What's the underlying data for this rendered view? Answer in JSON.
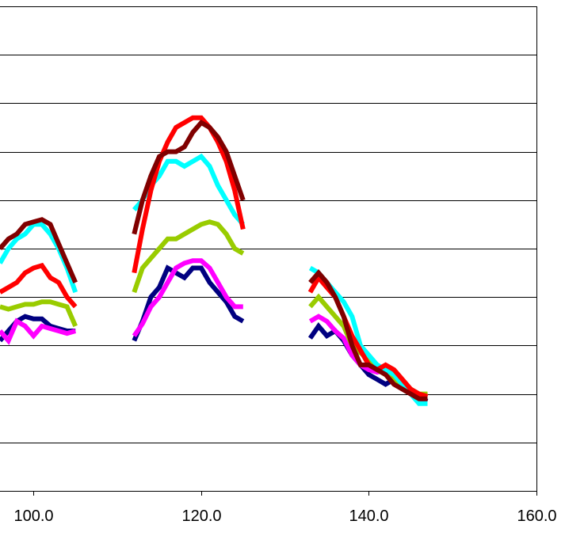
{
  "chart_data": {
    "type": "line",
    "title": "",
    "xlabel": "",
    "ylabel": "",
    "xlim": [
      96,
      160
    ],
    "ylim": [
      0,
      10
    ],
    "x_ticks": [
      {
        "value": 100,
        "label": "100.0"
      },
      {
        "value": 120,
        "label": "120.0"
      },
      {
        "value": 140,
        "label": "140.0"
      },
      {
        "value": 160,
        "label": "160.0"
      }
    ],
    "y_gridlines": [
      1,
      2,
      3,
      4,
      5,
      6,
      7,
      8,
      9,
      10
    ],
    "grid": true,
    "legend": "none",
    "series": [
      {
        "color": "#000080",
        "segments": [
          [
            [
              96,
              3.1
            ],
            [
              97,
              3.3
            ],
            [
              98,
              3.5
            ],
            [
              99,
              3.6
            ],
            [
              100,
              3.55
            ],
            [
              101,
              3.55
            ],
            [
              102,
              3.4
            ],
            [
              103,
              3.35
            ],
            [
              104,
              3.3
            ],
            [
              105,
              3.3
            ]
          ],
          [
            [
              112,
              3.1
            ],
            [
              113,
              3.5
            ],
            [
              114,
              4.0
            ],
            [
              115,
              4.2
            ],
            [
              116,
              4.6
            ],
            [
              117,
              4.5
            ],
            [
              118,
              4.4
            ],
            [
              119,
              4.6
            ],
            [
              120,
              4.6
            ],
            [
              121,
              4.3
            ],
            [
              122,
              4.1
            ],
            [
              123,
              3.9
            ],
            [
              124,
              3.6
            ],
            [
              125,
              3.5
            ]
          ],
          [
            [
              133,
              3.15
            ],
            [
              134,
              3.4
            ],
            [
              135,
              3.2
            ],
            [
              136,
              3.3
            ],
            [
              137,
              3.1
            ],
            [
              138,
              2.8
            ],
            [
              139,
              2.6
            ],
            [
              140,
              2.4
            ],
            [
              141,
              2.3
            ],
            [
              142,
              2.2
            ],
            [
              143,
              2.3
            ],
            [
              144,
              2.25
            ],
            [
              145,
              2.1
            ],
            [
              146,
              1.9
            ],
            [
              147,
              1.85
            ]
          ]
        ]
      },
      {
        "color": "#FF00FF",
        "segments": [
          [
            [
              96,
              3.3
            ],
            [
              97,
              3.1
            ],
            [
              98,
              3.5
            ],
            [
              99,
              3.4
            ],
            [
              100,
              3.2
            ],
            [
              101,
              3.4
            ],
            [
              102,
              3.35
            ],
            [
              103,
              3.3
            ],
            [
              104,
              3.25
            ],
            [
              105,
              3.3
            ]
          ],
          [
            [
              112,
              3.2
            ],
            [
              113,
              3.45
            ],
            [
              114,
              3.8
            ],
            [
              115,
              4.0
            ],
            [
              116,
              4.3
            ],
            [
              117,
              4.6
            ],
            [
              118,
              4.7
            ],
            [
              119,
              4.75
            ],
            [
              120,
              4.75
            ],
            [
              121,
              4.6
            ],
            [
              122,
              4.3
            ],
            [
              123,
              4.0
            ],
            [
              124,
              3.8
            ],
            [
              125,
              3.8
            ]
          ],
          [
            [
              133,
              3.5
            ],
            [
              134,
              3.6
            ],
            [
              135,
              3.5
            ],
            [
              136,
              3.3
            ],
            [
              137,
              3.15
            ],
            [
              138,
              2.8
            ],
            [
              139,
              2.6
            ],
            [
              140,
              2.5
            ],
            [
              141,
              2.45
            ],
            [
              142,
              2.5
            ],
            [
              143,
              2.4
            ],
            [
              144,
              2.2
            ],
            [
              145,
              2.0
            ],
            [
              146,
              1.9
            ],
            [
              147,
              1.9
            ]
          ]
        ]
      },
      {
        "color": "#99CC00",
        "segments": [
          [
            [
              96,
              3.8
            ],
            [
              97,
              3.75
            ],
            [
              98,
              3.8
            ],
            [
              99,
              3.85
            ],
            [
              100,
              3.85
            ],
            [
              101,
              3.9
            ],
            [
              102,
              3.9
            ],
            [
              103,
              3.85
            ],
            [
              104,
              3.8
            ],
            [
              105,
              3.4
            ]
          ],
          [
            [
              112,
              4.1
            ],
            [
              113,
              4.6
            ],
            [
              114,
              4.8
            ],
            [
              115,
              5.0
            ],
            [
              116,
              5.2
            ],
            [
              117,
              5.2
            ],
            [
              118,
              5.3
            ],
            [
              119,
              5.4
            ],
            [
              120,
              5.5
            ],
            [
              121,
              5.55
            ],
            [
              122,
              5.5
            ],
            [
              123,
              5.3
            ],
            [
              124,
              5.0
            ],
            [
              125,
              4.9
            ]
          ],
          [
            [
              133,
              3.8
            ],
            [
              134,
              4.0
            ],
            [
              135,
              3.8
            ],
            [
              136,
              3.6
            ],
            [
              137,
              3.4
            ],
            [
              138,
              3.0
            ],
            [
              139,
              2.85
            ],
            [
              140,
              2.7
            ],
            [
              141,
              2.5
            ],
            [
              142,
              2.4
            ],
            [
              143,
              2.3
            ],
            [
              144,
              2.2
            ],
            [
              145,
              2.1
            ],
            [
              146,
              2.0
            ],
            [
              147,
              2.0
            ]
          ]
        ]
      },
      {
        "color": "#00FFFF",
        "segments": [
          [
            [
              96,
              4.7
            ],
            [
              97,
              5.0
            ],
            [
              98,
              5.2
            ],
            [
              99,
              5.3
            ],
            [
              100,
              5.5
            ],
            [
              101,
              5.5
            ],
            [
              102,
              5.3
            ],
            [
              103,
              5.0
            ],
            [
              104,
              4.6
            ],
            [
              105,
              4.1
            ]
          ],
          [
            [
              112,
              5.8
            ],
            [
              113,
              6.0
            ],
            [
              114,
              6.3
            ],
            [
              115,
              6.5
            ],
            [
              116,
              6.8
            ],
            [
              117,
              6.8
            ],
            [
              118,
              6.7
            ],
            [
              119,
              6.8
            ],
            [
              120,
              6.9
            ],
            [
              121,
              6.7
            ],
            [
              122,
              6.3
            ],
            [
              123,
              6.0
            ],
            [
              124,
              5.7
            ],
            [
              125,
              5.5
            ]
          ],
          [
            [
              133,
              4.6
            ],
            [
              134,
              4.5
            ],
            [
              135,
              4.3
            ],
            [
              136,
              4.1
            ],
            [
              137,
              3.9
            ],
            [
              138,
              3.6
            ],
            [
              139,
              3.0
            ],
            [
              140,
              2.8
            ],
            [
              141,
              2.6
            ],
            [
              142,
              2.5
            ],
            [
              143,
              2.4
            ],
            [
              144,
              2.2
            ],
            [
              145,
              2.0
            ],
            [
              146,
              1.8
            ],
            [
              147,
              1.8
            ]
          ]
        ]
      },
      {
        "color": "#FF0000",
        "segments": [
          [
            [
              96,
              4.1
            ],
            [
              97,
              4.2
            ],
            [
              98,
              4.3
            ],
            [
              99,
              4.5
            ],
            [
              100,
              4.6
            ],
            [
              101,
              4.65
            ],
            [
              102,
              4.4
            ],
            [
              103,
              4.3
            ],
            [
              104,
              4.0
            ],
            [
              105,
              3.8
            ]
          ],
          [
            [
              112,
              4.5
            ],
            [
              113,
              5.4
            ],
            [
              114,
              6.2
            ],
            [
              115,
              6.8
            ],
            [
              116,
              7.2
            ],
            [
              117,
              7.5
            ],
            [
              118,
              7.6
            ],
            [
              119,
              7.7
            ],
            [
              120,
              7.7
            ],
            [
              121,
              7.5
            ],
            [
              122,
              7.2
            ],
            [
              123,
              6.8
            ],
            [
              124,
              6.2
            ],
            [
              125,
              5.4
            ]
          ],
          [
            [
              133,
              4.1
            ],
            [
              134,
              4.4
            ],
            [
              135,
              4.2
            ],
            [
              136,
              4.0
            ],
            [
              137,
              3.6
            ],
            [
              138,
              3.2
            ],
            [
              139,
              2.9
            ],
            [
              140,
              2.6
            ],
            [
              141,
              2.5
            ],
            [
              142,
              2.6
            ],
            [
              143,
              2.5
            ],
            [
              144,
              2.3
            ],
            [
              145,
              2.1
            ],
            [
              146,
              2.0
            ],
            [
              147,
              1.95
            ]
          ]
        ]
      },
      {
        "color": "#800000",
        "segments": [
          [
            [
              96,
              5.0
            ],
            [
              97,
              5.2
            ],
            [
              98,
              5.3
            ],
            [
              99,
              5.5
            ],
            [
              100,
              5.55
            ],
            [
              101,
              5.6
            ],
            [
              102,
              5.5
            ],
            [
              103,
              5.1
            ],
            [
              104,
              4.7
            ],
            [
              105,
              4.3
            ]
          ],
          [
            [
              112,
              5.3
            ],
            [
              113,
              6.0
            ],
            [
              114,
              6.5
            ],
            [
              115,
              6.9
            ],
            [
              116,
              7.0
            ],
            [
              117,
              7.0
            ],
            [
              118,
              7.1
            ],
            [
              119,
              7.4
            ],
            [
              120,
              7.6
            ],
            [
              121,
              7.5
            ],
            [
              122,
              7.3
            ],
            [
              123,
              7.0
            ],
            [
              124,
              6.5
            ],
            [
              125,
              6.0
            ]
          ],
          [
            [
              133,
              4.3
            ],
            [
              134,
              4.5
            ],
            [
              135,
              4.3
            ],
            [
              136,
              4.0
            ],
            [
              137,
              3.6
            ],
            [
              138,
              3.0
            ],
            [
              139,
              2.6
            ],
            [
              140,
              2.6
            ],
            [
              141,
              2.5
            ],
            [
              142,
              2.4
            ],
            [
              143,
              2.2
            ],
            [
              144,
              2.1
            ],
            [
              145,
              2.0
            ],
            [
              146,
              1.9
            ],
            [
              147,
              1.9
            ]
          ]
        ]
      }
    ]
  }
}
